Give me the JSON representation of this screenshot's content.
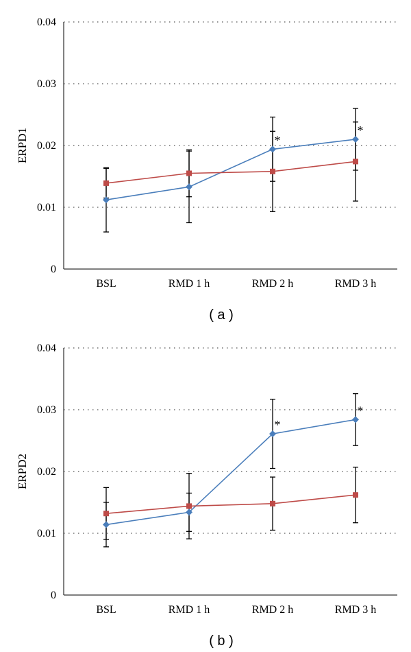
{
  "chart_data": [
    {
      "type": "line",
      "panel_label": "( a )",
      "ylabel": "ERPD1",
      "xlabel": "",
      "categories": [
        "BSL",
        "RMD 1 h",
        "RMD 2 h",
        "RMD 3 h"
      ],
      "ylim": [
        0,
        0.04
      ],
      "yticks": [
        "0",
        "0.01",
        "0.02",
        "0.03",
        "0.04"
      ],
      "ytick_values": [
        0,
        0.01,
        0.02,
        0.03,
        0.04
      ],
      "grid": true,
      "series": [
        {
          "name": "series-blue",
          "color": "#4a7ebb",
          "marker": "diamond",
          "values": [
            0.0112,
            0.0133,
            0.0194,
            0.021
          ],
          "errors": [
            0.0052,
            0.0058,
            0.0052,
            0.005
          ]
        },
        {
          "name": "series-red",
          "color": "#be4b48",
          "marker": "square",
          "values": [
            0.0139,
            0.0155,
            0.0158,
            0.0174
          ],
          "errors": [
            0.0024,
            0.0038,
            0.0065,
            0.0064
          ]
        }
      ],
      "annotations": [
        {
          "category_index": 2,
          "text": "*",
          "value": 0.0194
        },
        {
          "category_index": 3,
          "text": "*",
          "value": 0.021
        }
      ]
    },
    {
      "type": "line",
      "panel_label": "( b )",
      "ylabel": "ERPD2",
      "xlabel": "",
      "categories": [
        "BSL",
        "RMD 1 h",
        "RMD 2 h",
        "RMD 3 h"
      ],
      "ylim": [
        0,
        0.04
      ],
      "yticks": [
        "0",
        "0.01",
        "0.02",
        "0.03",
        "0.04"
      ],
      "ytick_values": [
        0,
        0.01,
        0.02,
        0.03,
        0.04
      ],
      "grid": true,
      "series": [
        {
          "name": "series-blue",
          "color": "#4a7ebb",
          "marker": "diamond",
          "values": [
            0.0114,
            0.0134,
            0.0261,
            0.0284
          ],
          "errors": [
            0.0036,
            0.0031,
            0.0056,
            0.0042
          ]
        },
        {
          "name": "series-red",
          "color": "#be4b48",
          "marker": "square",
          "values": [
            0.0132,
            0.0144,
            0.0148,
            0.0162
          ],
          "errors": [
            0.0042,
            0.0053,
            0.0043,
            0.0045
          ]
        }
      ],
      "annotations": [
        {
          "category_index": 2,
          "text": "*",
          "value": 0.0261
        },
        {
          "category_index": 3,
          "text": "*",
          "value": 0.0284
        }
      ]
    }
  ]
}
